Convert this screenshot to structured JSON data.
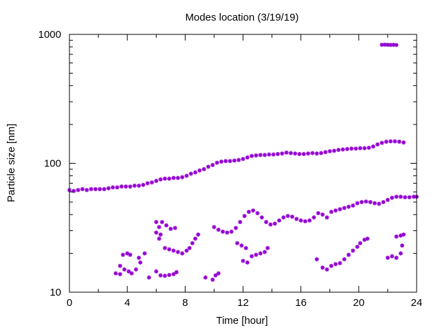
{
  "chart_data": {
    "type": "scatter",
    "title": "Modes location (3/19/19)",
    "xlabel": "Time [hour]",
    "ylabel": "Particle size [nm]",
    "xlim": [
      0,
      24
    ],
    "ylim": [
      10,
      1000
    ],
    "yscale": "log",
    "x_ticks": [
      0,
      4,
      8,
      12,
      16,
      20,
      24
    ],
    "x_tick_labels": [
      "0",
      "4",
      "8",
      "12",
      "16",
      "20",
      "24"
    ],
    "y_ticks": [
      10,
      100,
      1000
    ],
    "y_tick_labels": [
      "10",
      "100",
      "1000"
    ],
    "grid": false,
    "marker_color": "#9400D3",
    "series": [
      {
        "points": [
          [
            0.0,
            62
          ],
          [
            0.3,
            61
          ],
          [
            0.6,
            62
          ],
          [
            0.9,
            63
          ],
          [
            1.2,
            62
          ],
          [
            1.5,
            63
          ],
          [
            1.8,
            63
          ],
          [
            2.1,
            63
          ],
          [
            2.4,
            63
          ],
          [
            2.7,
            64
          ],
          [
            3.0,
            65
          ],
          [
            3.3,
            65
          ],
          [
            3.6,
            66
          ],
          [
            3.9,
            66
          ],
          [
            4.2,
            66
          ],
          [
            4.5,
            67
          ],
          [
            4.8,
            67
          ],
          [
            5.1,
            68
          ],
          [
            5.4,
            70
          ],
          [
            5.7,
            71
          ],
          [
            6.0,
            73
          ],
          [
            6.3,
            75
          ],
          [
            6.6,
            76
          ],
          [
            6.9,
            76
          ],
          [
            7.2,
            77
          ],
          [
            7.5,
            77
          ],
          [
            7.8,
            78
          ],
          [
            8.1,
            80
          ],
          [
            8.4,
            83
          ],
          [
            8.7,
            85
          ],
          [
            9.0,
            88
          ],
          [
            9.3,
            90
          ],
          [
            9.6,
            94
          ],
          [
            9.9,
            97
          ],
          [
            10.2,
            101
          ],
          [
            10.5,
            103
          ],
          [
            10.8,
            104
          ],
          [
            11.1,
            104
          ],
          [
            11.4,
            105
          ],
          [
            11.7,
            106
          ],
          [
            12.0,
            108
          ],
          [
            12.3,
            111
          ],
          [
            12.6,
            114
          ],
          [
            12.9,
            115
          ],
          [
            13.2,
            116
          ],
          [
            13.5,
            116
          ],
          [
            13.8,
            117
          ],
          [
            14.1,
            117
          ],
          [
            14.4,
            118
          ],
          [
            14.7,
            119
          ],
          [
            15.0,
            121
          ],
          [
            15.3,
            120
          ],
          [
            15.6,
            119
          ],
          [
            15.9,
            118
          ],
          [
            16.2,
            118
          ],
          [
            16.5,
            119
          ],
          [
            16.8,
            120
          ],
          [
            17.1,
            119
          ],
          [
            17.4,
            120
          ],
          [
            17.7,
            122
          ],
          [
            18.0,
            124
          ],
          [
            18.3,
            125
          ],
          [
            18.6,
            127
          ],
          [
            18.9,
            128
          ],
          [
            19.2,
            129
          ],
          [
            19.5,
            130
          ],
          [
            19.8,
            130
          ],
          [
            20.1,
            131
          ],
          [
            20.4,
            131
          ],
          [
            20.7,
            132
          ],
          [
            21.0,
            135
          ],
          [
            21.3,
            140
          ],
          [
            21.6,
            144
          ],
          [
            21.9,
            147
          ],
          [
            22.2,
            148
          ],
          [
            22.5,
            148
          ],
          [
            22.8,
            147
          ],
          [
            23.1,
            145
          ]
        ]
      },
      {
        "points": [
          [
            21.6,
            830
          ],
          [
            21.8,
            832
          ],
          [
            22.0,
            830
          ],
          [
            22.2,
            828
          ],
          [
            22.4,
            830
          ],
          [
            22.6,
            827
          ]
        ]
      },
      {
        "points": [
          [
            10.0,
            32
          ],
          [
            10.3,
            30.5
          ],
          [
            10.6,
            29.5
          ],
          [
            10.9,
            29
          ],
          [
            11.2,
            29.5
          ],
          [
            11.5,
            31.5
          ],
          [
            11.8,
            35
          ],
          [
            12.1,
            39
          ],
          [
            12.4,
            42
          ],
          [
            12.7,
            43
          ],
          [
            13.0,
            41
          ],
          [
            13.3,
            38
          ],
          [
            13.6,
            35
          ],
          [
            13.9,
            33.5
          ],
          [
            14.2,
            34
          ],
          [
            14.5,
            36
          ],
          [
            14.8,
            38
          ],
          [
            15.1,
            39
          ],
          [
            15.4,
            38.5
          ],
          [
            15.7,
            37
          ],
          [
            16.0,
            36
          ],
          [
            16.3,
            35.5
          ],
          [
            16.6,
            36
          ],
          [
            16.9,
            38
          ],
          [
            17.2,
            41
          ],
          [
            17.5,
            40
          ],
          [
            17.8,
            38
          ],
          [
            18.1,
            42
          ],
          [
            18.4,
            43
          ],
          [
            18.7,
            44
          ],
          [
            19.0,
            45
          ],
          [
            19.3,
            46
          ],
          [
            19.6,
            47
          ],
          [
            19.9,
            49
          ],
          [
            20.2,
            50
          ],
          [
            20.5,
            50.5
          ],
          [
            20.8,
            50
          ],
          [
            21.1,
            49
          ],
          [
            21.4,
            48.5
          ],
          [
            21.7,
            50
          ],
          [
            22.0,
            52
          ],
          [
            22.3,
            54
          ],
          [
            22.6,
            55
          ],
          [
            22.9,
            55
          ],
          [
            23.2,
            54.5
          ],
          [
            23.5,
            54.5
          ],
          [
            23.8,
            55
          ],
          [
            24.0,
            55
          ]
        ]
      },
      {
        "points": [
          [
            3.7,
            19.5
          ],
          [
            4.0,
            20
          ],
          [
            4.2,
            19.5
          ],
          [
            3.5,
            16
          ],
          [
            3.8,
            15
          ],
          [
            4.1,
            14.5
          ],
          [
            4.3,
            14
          ],
          [
            4.6,
            15
          ],
          [
            4.9,
            17
          ],
          [
            5.2,
            20
          ],
          [
            4.8,
            18.5
          ],
          [
            3.2,
            14
          ],
          [
            3.5,
            13.8
          ],
          [
            5.5,
            13
          ],
          [
            6.0,
            14.5
          ],
          [
            6.3,
            13.5
          ],
          [
            6.6,
            13.4
          ],
          [
            6.9,
            13.6
          ],
          [
            7.2,
            13.8
          ],
          [
            7.4,
            14.3
          ],
          [
            6.0,
            35
          ],
          [
            6.4,
            35
          ],
          [
            6.7,
            33
          ],
          [
            7.0,
            31
          ],
          [
            6.2,
            32
          ],
          [
            7.3,
            31.5
          ],
          [
            6.0,
            29
          ],
          [
            6.3,
            28
          ],
          [
            6.6,
            22
          ],
          [
            6.9,
            21.5
          ],
          [
            7.2,
            21
          ],
          [
            7.5,
            20.5
          ],
          [
            7.8,
            20
          ],
          [
            8.1,
            21
          ],
          [
            8.3,
            22
          ],
          [
            8.5,
            24
          ],
          [
            8.7,
            26
          ],
          [
            8.9,
            28
          ],
          [
            6.2,
            26
          ]
        ]
      },
      {
        "points": [
          [
            9.4,
            13
          ],
          [
            9.9,
            12.5
          ],
          [
            10.1,
            13.5
          ],
          [
            10.3,
            14
          ],
          [
            11.6,
            24
          ],
          [
            11.9,
            23
          ],
          [
            12.2,
            22
          ],
          [
            12.0,
            17.5
          ],
          [
            12.3,
            17
          ],
          [
            12.6,
            19
          ],
          [
            12.9,
            19.5
          ],
          [
            13.2,
            20
          ],
          [
            13.5,
            20.5
          ],
          [
            13.7,
            22
          ],
          [
            17.1,
            18
          ],
          [
            17.5,
            15.5
          ],
          [
            17.8,
            15
          ],
          [
            18.1,
            16
          ],
          [
            18.4,
            16.5
          ],
          [
            18.7,
            16.8
          ],
          [
            19.0,
            18
          ],
          [
            19.3,
            19.5
          ],
          [
            19.6,
            21
          ],
          [
            19.9,
            22.5
          ],
          [
            20.1,
            24
          ],
          [
            20.4,
            25.5
          ],
          [
            20.6,
            26
          ],
          [
            22.0,
            18.5
          ],
          [
            22.3,
            19
          ],
          [
            22.6,
            18.5
          ],
          [
            22.9,
            20
          ],
          [
            22.6,
            27
          ],
          [
            22.9,
            27.5
          ],
          [
            23.1,
            28
          ],
          [
            23.0,
            23
          ]
        ]
      }
    ]
  }
}
